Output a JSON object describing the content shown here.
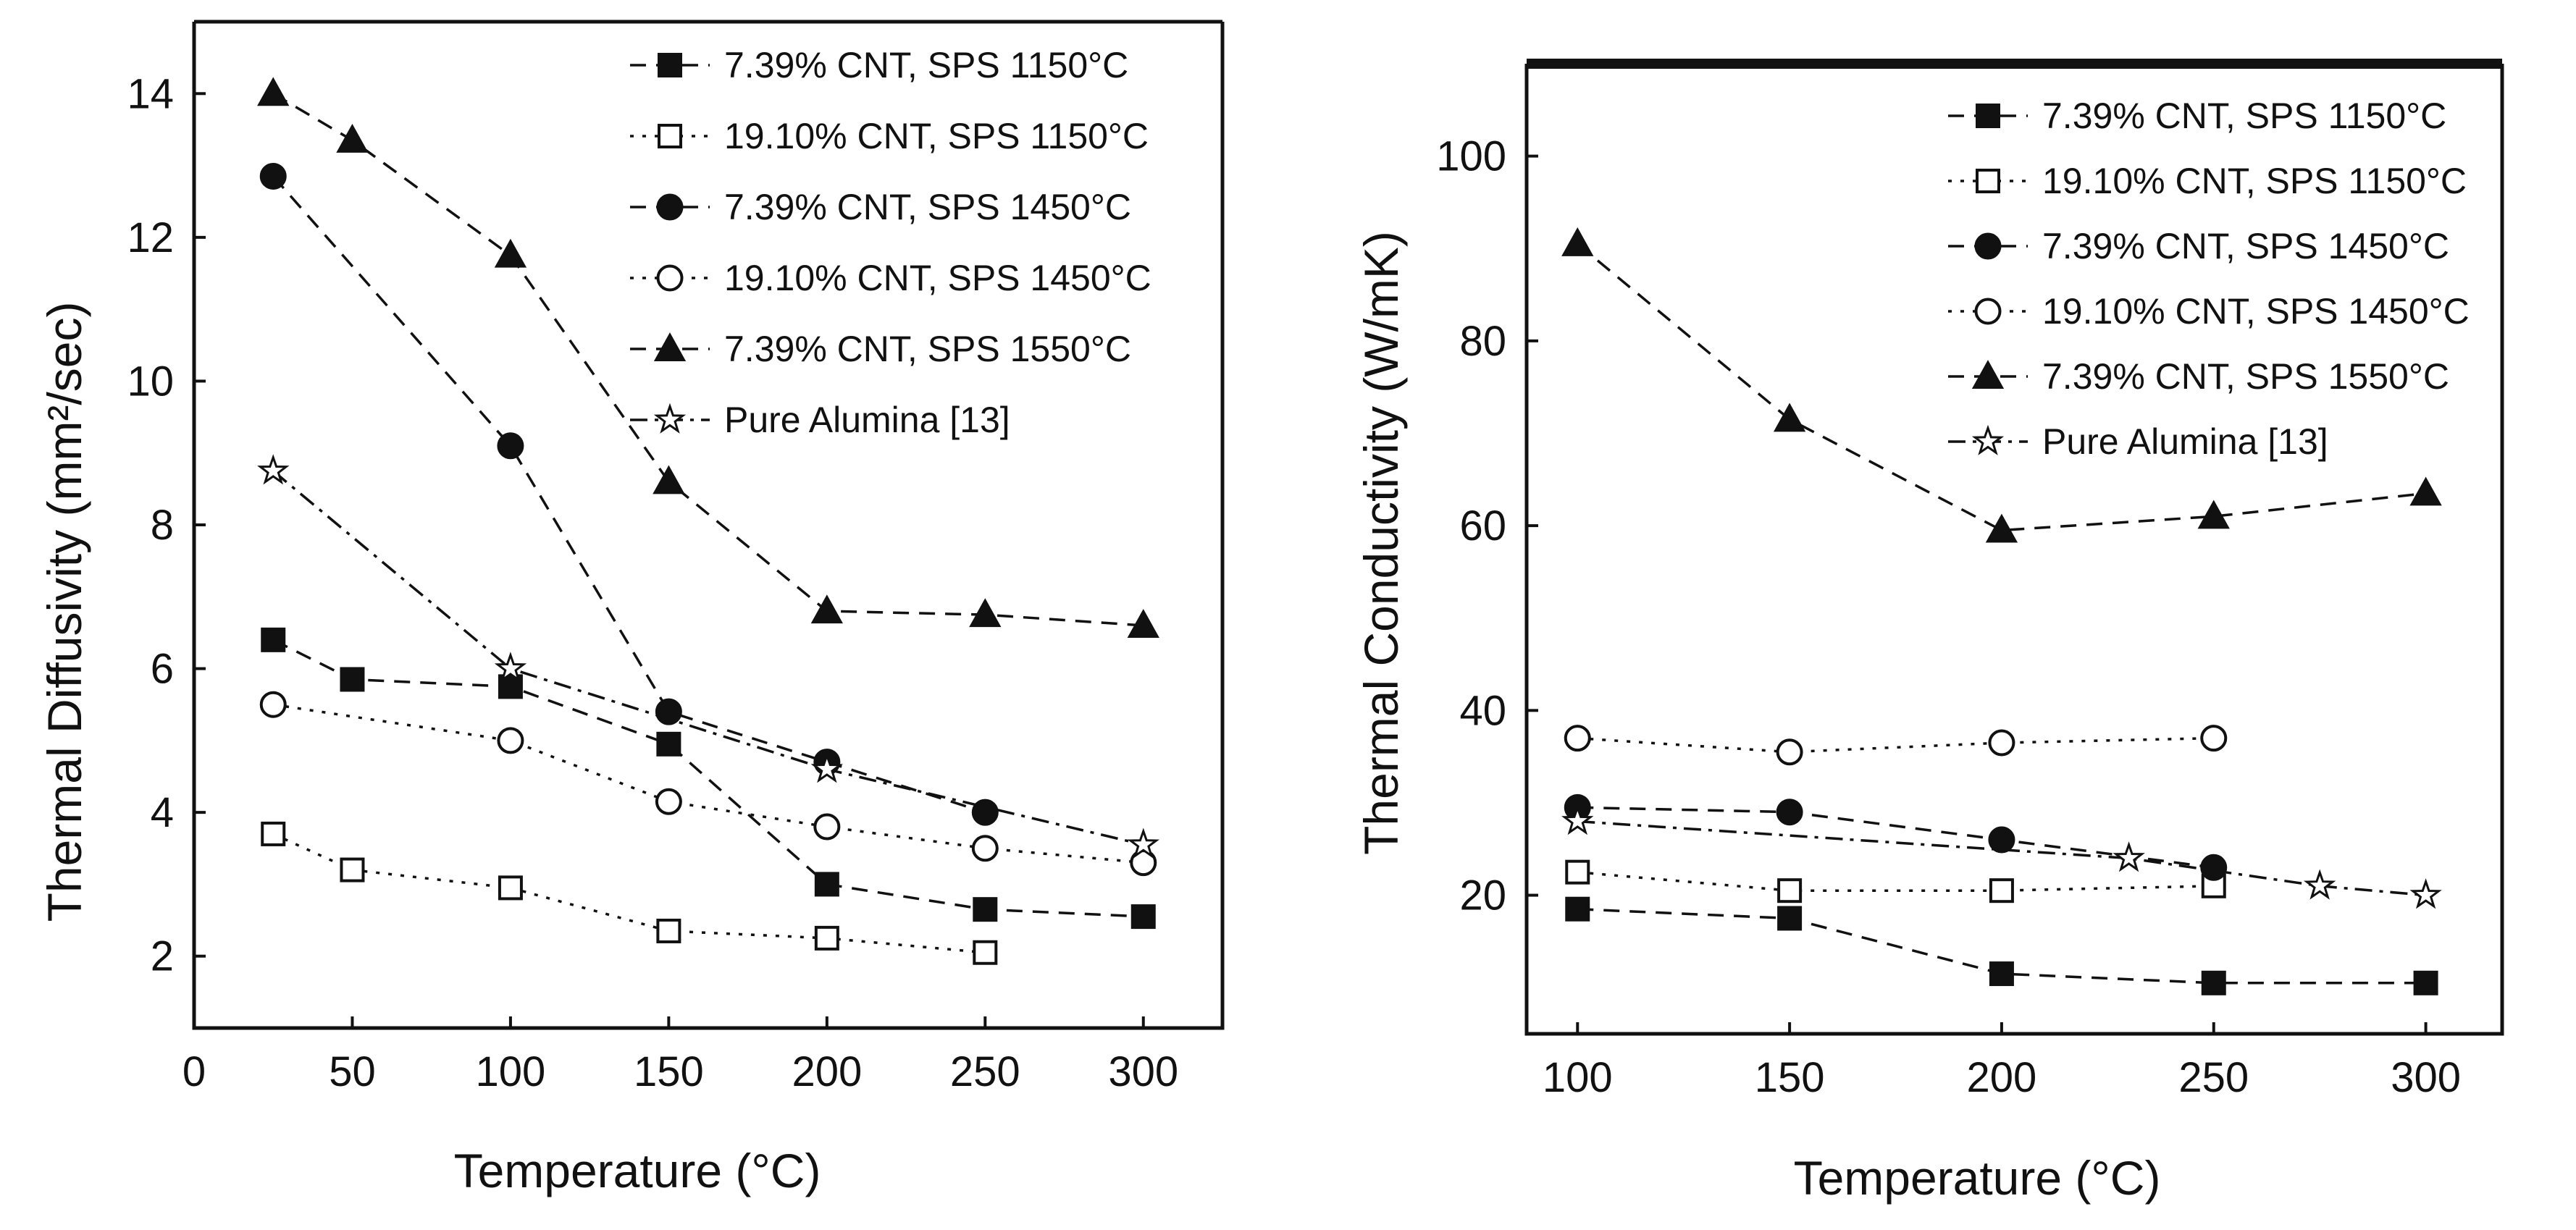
{
  "chart_data": [
    {
      "type": "line",
      "ylabel": "Thermal Diffusivity (mm²/sec)",
      "xlabel": "Temperature (°C)",
      "xlim": [
        0,
        325
      ],
      "ylim": [
        1,
        15
      ],
      "xticks": [
        0,
        50,
        100,
        150,
        200,
        250,
        300
      ],
      "yticks": [
        2,
        4,
        6,
        8,
        10,
        12,
        14
      ],
      "legend_position": "top-right",
      "series": [
        {
          "name": "7.39% CNT, SPS 1150°C",
          "marker": "square-filled",
          "dash": "dashed",
          "x": [
            25,
            50,
            100,
            150,
            200,
            250,
            300
          ],
          "y": [
            6.4,
            5.85,
            5.75,
            4.95,
            3.0,
            2.65,
            2.55
          ]
        },
        {
          "name": "19.10% CNT, SPS 1150°C",
          "marker": "square-open",
          "dash": "dotted",
          "x": [
            25,
            50,
            100,
            150,
            200,
            250
          ],
          "y": [
            3.7,
            3.2,
            2.95,
            2.35,
            2.25,
            2.05
          ]
        },
        {
          "name": "7.39% CNT, SPS 1450°C",
          "marker": "circle-filled",
          "dash": "dashed",
          "x": [
            25,
            100,
            150,
            200,
            250
          ],
          "y": [
            12.85,
            9.1,
            5.4,
            4.7,
            4.0
          ]
        },
        {
          "name": "19.10% CNT, SPS 1450°C",
          "marker": "circle-open",
          "dash": "dotted",
          "x": [
            25,
            100,
            150,
            200,
            250,
            300
          ],
          "y": [
            5.5,
            5.0,
            4.15,
            3.8,
            3.5,
            3.3
          ]
        },
        {
          "name": "7.39% CNT, SPS 1550°C",
          "marker": "triangle-filled",
          "dash": "dashed",
          "x": [
            25,
            50,
            100,
            150,
            200,
            250,
            300
          ],
          "y": [
            14.0,
            13.35,
            11.75,
            8.6,
            6.8,
            6.75,
            6.6
          ]
        },
        {
          "name": "Pure Alumina [13]",
          "marker": "star-open",
          "dash": "dashdot",
          "x": [
            25,
            100,
            200,
            300
          ],
          "y": [
            8.75,
            6.0,
            4.6,
            3.55
          ]
        }
      ]
    },
    {
      "type": "line",
      "ylabel": "Thermal Conductivity (W/mK)",
      "xlabel": "Temperature (°C)",
      "xlim": [
        88,
        318
      ],
      "ylim": [
        5,
        110
      ],
      "xticks": [
        100,
        150,
        200,
        250,
        300
      ],
      "yticks": [
        20,
        40,
        60,
        80,
        100
      ],
      "legend_position": "top-right",
      "series": [
        {
          "name": "7.39% CNT, SPS 1150°C",
          "marker": "square-filled",
          "dash": "dashed",
          "x": [
            100,
            150,
            200,
            250,
            300
          ],
          "y": [
            18.5,
            17.5,
            11.5,
            10.5,
            10.5
          ]
        },
        {
          "name": "19.10% CNT, SPS 1150°C",
          "marker": "square-open",
          "dash": "dotted",
          "x": [
            100,
            150,
            200,
            250
          ],
          "y": [
            22.5,
            20.5,
            20.5,
            21.0
          ]
        },
        {
          "name": "7.39% CNT, SPS 1450°C",
          "marker": "circle-filled",
          "dash": "dashed",
          "x": [
            100,
            150,
            200,
            250
          ],
          "y": [
            29.5,
            29.0,
            26.0,
            23.0
          ]
        },
        {
          "name": "19.10% CNT, SPS 1450°C",
          "marker": "circle-open",
          "dash": "dotted",
          "x": [
            100,
            150,
            200,
            250
          ],
          "y": [
            37.0,
            35.5,
            36.5,
            37.0
          ]
        },
        {
          "name": "7.39% CNT, SPS 1550°C",
          "marker": "triangle-filled",
          "dash": "dashed",
          "x": [
            100,
            150,
            200,
            250,
            300
          ],
          "y": [
            90.5,
            71.5,
            59.5,
            61.0,
            63.5
          ]
        },
        {
          "name": "Pure Alumina [13]",
          "marker": "star-open",
          "dash": "dashdot",
          "x": [
            100,
            230,
            275,
            300
          ],
          "y": [
            28.0,
            24.0,
            21.0,
            20.0
          ]
        }
      ]
    }
  ]
}
